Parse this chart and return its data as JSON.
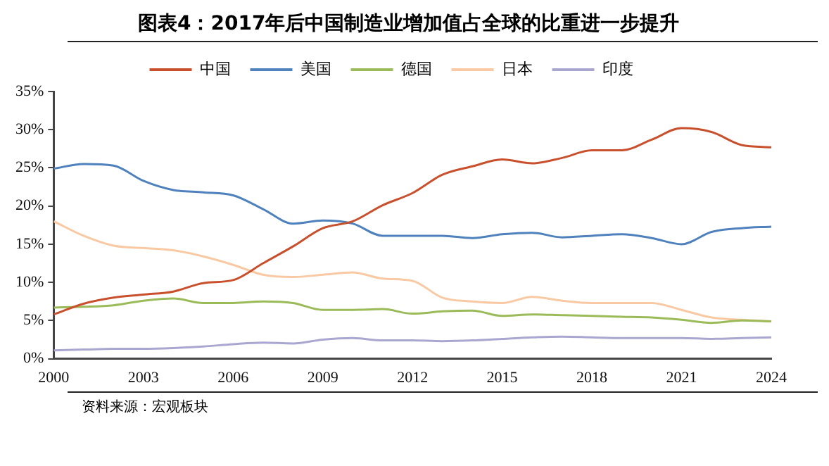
{
  "chart_data": {
    "type": "line",
    "title": "图表4：2017年后中国制造业增加值占全球的比重进一步提升",
    "annotations": [
      "资料来源：宏观板块"
    ],
    "x": [
      2000,
      2001,
      2002,
      2003,
      2004,
      2005,
      2006,
      2007,
      2008,
      2009,
      2010,
      2011,
      2012,
      2013,
      2014,
      2015,
      2016,
      2017,
      2018,
      2019,
      2020,
      2021,
      2022,
      2023,
      2024
    ],
    "series": [
      {
        "name": "中国",
        "color": "#c8502d",
        "values": [
          5.8,
          7.2,
          8.0,
          8.4,
          8.8,
          9.9,
          10.3,
          12.5,
          14.7,
          17.1,
          18.0,
          20.1,
          21.7,
          24.1,
          25.2,
          26.1,
          25.6,
          26.3,
          27.3,
          27.3,
          28.7,
          30.2,
          29.7,
          28.0,
          27.7
        ]
      },
      {
        "name": "美国",
        "color": "#4f81bd",
        "values": [
          24.9,
          25.5,
          25.3,
          23.3,
          22.1,
          21.8,
          21.4,
          19.6,
          17.7,
          18.1,
          17.7,
          16.1,
          16.1,
          16.1,
          15.8,
          16.3,
          16.5,
          15.9,
          16.1,
          16.3,
          15.8,
          15.0,
          16.6,
          17.1,
          17.3
        ]
      },
      {
        "name": "德国",
        "color": "#9bbb59",
        "values": [
          6.7,
          6.8,
          7.0,
          7.6,
          7.9,
          7.3,
          7.3,
          7.5,
          7.3,
          6.4,
          6.4,
          6.5,
          5.9,
          6.2,
          6.3,
          5.6,
          5.8,
          5.7,
          5.6,
          5.5,
          5.4,
          5.1,
          4.7,
          5.0,
          4.9
        ]
      },
      {
        "name": "日本",
        "color": "#f9c9a3",
        "values": [
          18.0,
          16.1,
          14.8,
          14.5,
          14.2,
          13.4,
          12.3,
          11.0,
          10.7,
          11.0,
          11.3,
          10.5,
          10.2,
          8.0,
          7.5,
          7.3,
          8.1,
          7.6,
          7.3,
          7.3,
          7.3,
          6.4,
          5.4,
          5.1,
          4.9
        ]
      },
      {
        "name": "印度",
        "color": "#a9a7d0",
        "values": [
          1.1,
          1.2,
          1.3,
          1.3,
          1.4,
          1.6,
          1.9,
          2.1,
          2.0,
          2.5,
          2.7,
          2.4,
          2.4,
          2.3,
          2.4,
          2.6,
          2.8,
          2.9,
          2.8,
          2.7,
          2.7,
          2.7,
          2.6,
          2.7,
          2.8
        ]
      }
    ],
    "xlim": [
      2000,
      2024
    ],
    "xticks": [
      2000,
      2003,
      2006,
      2009,
      2012,
      2015,
      2018,
      2021,
      2024
    ],
    "ylim": [
      0,
      35
    ],
    "yticks": [
      {
        "value": 0,
        "label": "0%"
      },
      {
        "value": 5,
        "label": "5%"
      },
      {
        "value": 10,
        "label": "10%"
      },
      {
        "value": 15,
        "label": "15%"
      },
      {
        "value": 20,
        "label": "20%"
      },
      {
        "value": 25,
        "label": "25%"
      },
      {
        "value": 30,
        "label": "30%"
      },
      {
        "value": 35,
        "label": "35%"
      }
    ],
    "grid": false,
    "legend": "top",
    "marker": "none",
    "line_style": "solid"
  }
}
